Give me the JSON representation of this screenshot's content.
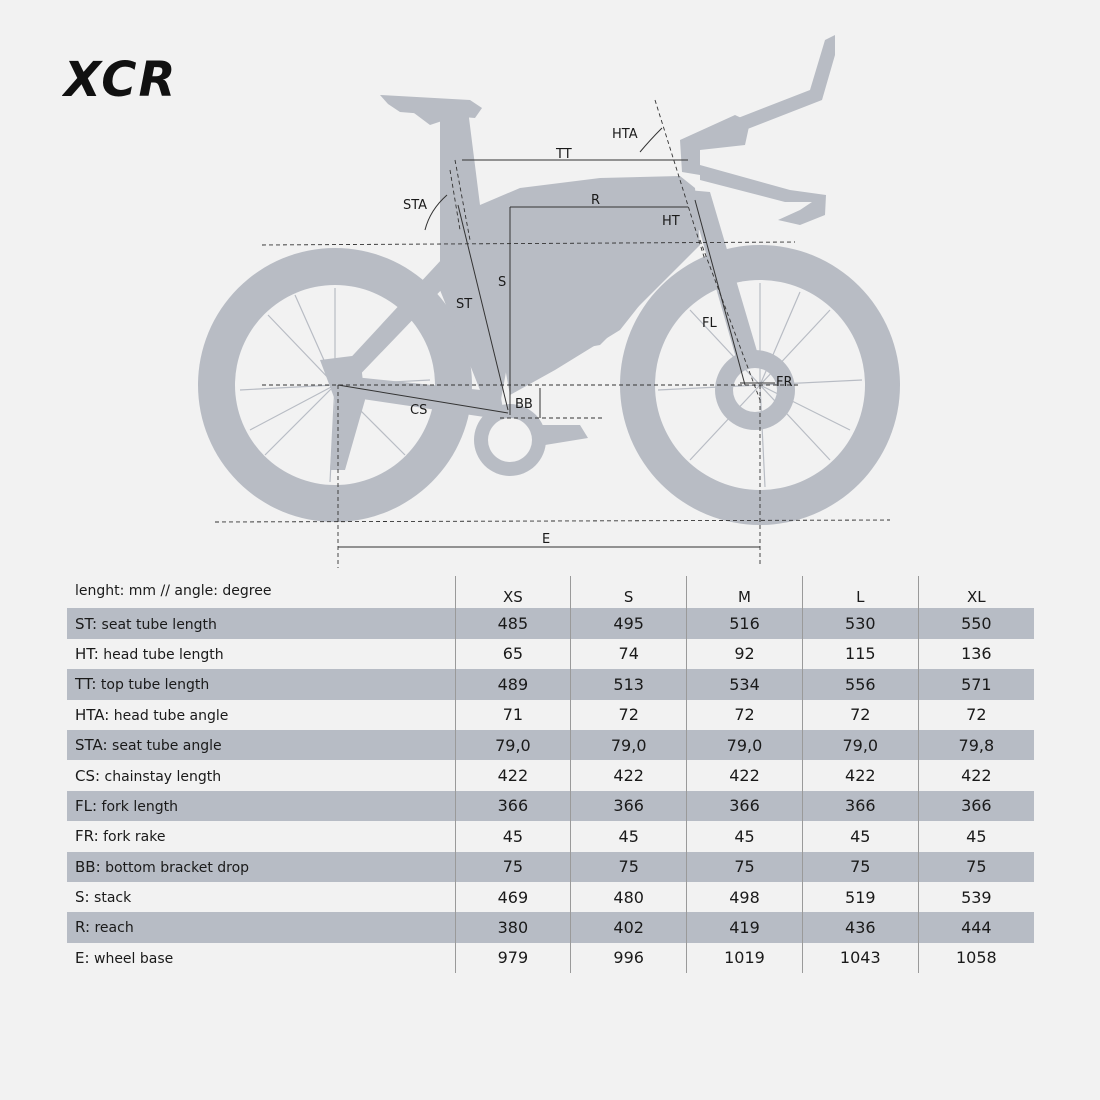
{
  "brand": "XCR",
  "diagram": {
    "labels": {
      "tt": "TT",
      "hta": "HTA",
      "sta": "STA",
      "r": "R",
      "ht": "HT",
      "s": "S",
      "st": "ST",
      "fl": "FL",
      "fr": "FR",
      "cs": "CS",
      "bb": "BB",
      "e": "E"
    }
  },
  "table": {
    "unit_header": "lenght: mm // angle: degree",
    "sizes": [
      "XS",
      "S",
      "M",
      "L",
      "XL"
    ],
    "rows": [
      {
        "abbr": "ST",
        "name": " seat tube length",
        "values": [
          "485",
          "495",
          "516",
          "530",
          "550"
        ]
      },
      {
        "abbr": "HT",
        "name": " head tube length",
        "values": [
          "65",
          "74",
          "92",
          "115",
          "136"
        ]
      },
      {
        "abbr": "TT",
        "name": " top tube length",
        "values": [
          "489",
          "513",
          "534",
          "556",
          "571"
        ]
      },
      {
        "abbr": "HTA",
        "name": " head tube angle",
        "values": [
          "71",
          "72",
          "72",
          "72",
          "72"
        ]
      },
      {
        "abbr": "STA",
        "name": " seat tube angle",
        "values": [
          "79,0",
          "79,0",
          "79,0",
          "79,0",
          "79,8"
        ]
      },
      {
        "abbr": "CS",
        "name": " chainstay length",
        "values": [
          "422",
          "422",
          "422",
          "422",
          "422"
        ]
      },
      {
        "abbr": "FL",
        "name": " fork length",
        "values": [
          "366",
          "366",
          "366",
          "366",
          "366"
        ]
      },
      {
        "abbr": "FR",
        "name": " fork rake",
        "values": [
          "45",
          "45",
          "45",
          "45",
          "45"
        ]
      },
      {
        "abbr": "BB",
        "name": " bottom bracket drop",
        "values": [
          "75",
          "75",
          "75",
          "75",
          "75"
        ]
      },
      {
        "abbr": "S",
        "name": " stack",
        "values": [
          "469",
          "480",
          "498",
          "519",
          "539"
        ]
      },
      {
        "abbr": "R",
        "name": " reach",
        "values": [
          "380",
          "402",
          "419",
          "436",
          "444"
        ]
      },
      {
        "abbr": "E",
        "name": " wheel base",
        "values": [
          "979",
          "996",
          "1019",
          "1043",
          "1058"
        ]
      }
    ]
  },
  "colors": {
    "bike_silhouette": "#b8bcc4",
    "row_shade": "#b7bcc5",
    "background": "#f2f2f2"
  }
}
